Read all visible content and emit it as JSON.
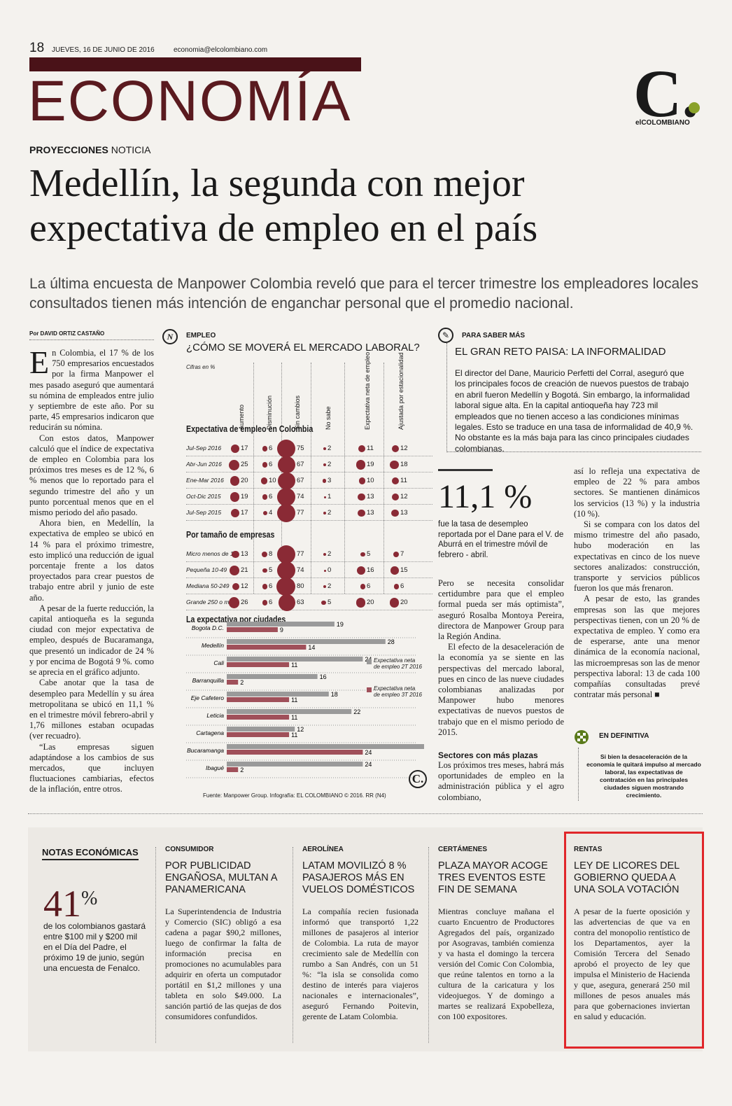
{
  "header": {
    "page_number": "18",
    "date": "JUEVES, 16 DE JUNIO DE 2016",
    "email": "economia@elcolombiano.com",
    "section": "ECONOMÍA",
    "logo_letter": "C.",
    "logo_name": "elCOLOMBIANO"
  },
  "article": {
    "kicker_bold": "PROYECCIONES",
    "kicker_light": " NOTICIA",
    "headline": "Medellín, la segunda con mejor expectativa de empleo en el país",
    "deck": "La última encuesta de Manpower Colombia reveló que para el tercer trimestre los empleadores locales consultados tienen más intención de enganchar personal que el promedio nacional.",
    "byline": "Por DAVID ORTIZ CASTAÑO",
    "dropcap": "E",
    "p1": "n Colombia, el 17 % de los 750 empresarios encuestados por la firma Manpower el mes pasado aseguró que aumentará su nómina de empleados entre julio y septiembre de este año. Por su parte, 45 empresarios indicaron que reducirán su nómina.",
    "p2": "Con estos datos, Manpower calculó que el índice de expectativa de empleo en Colombia para los próximos tres meses es de 12 %, 6 % menos que lo reportado para el segundo trimestre del año y un punto porcentual menos que en el mismo periodo del año pasado.",
    "p3": "Ahora bien, en Medellín, la expectativa de empleo se ubicó en 14 % para el próximo trimestre, esto implicó una reducción de igual porcentaje frente a los datos proyectados para crear puestos de trabajo entre abril y junio de este año.",
    "p4": "A pesar de la fuerte reducción, la capital antioqueña es la segunda ciudad con mejor expectativa de empleo, después de Bucaramanga, que presentó un indicador de 24 % y por encima de Bogotá 9 %. como se aprecia en el gráfico adjunto.",
    "p5": "Cabe anotar que la tasa de desempleo para Medellín y su área metropolitana se ubicó en 11,1 % en el trimestre móvil febrero-abril y 1,76 millones estaban ocupadas (ver recuadro).",
    "p6": "“Las empresas siguen adaptándose a los cambios de sus mercados, que incluyen fluctuaciones cambiarias, efectos de la inflación, entre otros.",
    "mid_p1": "Pero se necesita consolidar certidumbre para que el empleo formal pueda ser más optimista”, aseguró Rosalba Montoya Pereira, directora de Manpower Group para la Región Andina.",
    "mid_p2": "El efecto de la desaceleración de la economía ya se siente en las perspectivas del mercado laboral, pues en cinco de las nueve ciudades colombianas analizadas por Manpower hubo menores expectativas de nuevos puestos de trabajo que en el mismo periodo de 2015.",
    "subhead": "Sectores con más plazas",
    "mid_p3": "Los próximos tres meses, habrá más oportunidades de empleo en la administración pública y el agro colombiano,",
    "right_p1": "así lo refleja una expectativa de empleo de 22 % para ambos sectores. Se mantienen dinámicos los servicios (13 %) y la industria (10 %).",
    "right_p2": "Si se compara con los datos del mismo trimestre del año pasado, hubo moderación en las expectativas en cinco de los nueve sectores analizados: construcción, transporte y servicios públicos fueron los que más frenaron.",
    "right_p3": "A pesar de esto, las grandes empresas son las que mejores perspectivas tienen, con un 20 % de expectativa de empleo. Y como era de esperarse, ante una menor dinámica de la economía nacional, las microempresas son las de menor perspectiva laboral: 13 de cada 100 compañías consultadas prevé contratar más personal ■"
  },
  "sidebar": {
    "kicker": "PARA SABER MÁS",
    "title": "EL GRAN RETO PAISA: LA INFORMALIDAD",
    "text": "El director del Dane, Mauricio Perfetti del Corral, aseguró que los principales focos de creación de nuevos puestos de trabajo en abril fueron Medellín y Bogotá. Sin embargo, la informalidad laboral sigue alta. En la capital antioqueña hay 723 mil empleados que no tienen acceso a las condiciones mínimas legales. Esto se traduce en una tasa de informalidad de 40,9 %. No obstante es la más baja para las cinco principales ciudades colombianas.",
    "big_number": "11,1 %",
    "big_text": "fue la tasa de desempleo reportada por el Dane para el V. de Aburrá en el trimestre móvil de febrero - abril.",
    "ed_kicker": "EN DEFINITIVA",
    "ed_text": "Si bien la desaceleración de la economía le quitará impulso al mercado laboral, las expectativas de contratación en las principales ciudades siguen mostrando crecimiento."
  },
  "chart_data": {
    "kicker": "EMPLEO",
    "title": "¿CÓMO SE MOVERÁ EL MERCADO LABORAL?",
    "units": "Cifras en %",
    "columns": [
      "Aumento",
      "Disminución",
      "Sin cambios",
      "No sabe",
      "Expectativa neta de empleo",
      "Ajustada por estacionalidad"
    ],
    "type": "table",
    "groups": [
      {
        "title": "Expectativa de empleo en Colombia",
        "rows": [
          {
            "label": "Jul-Sep 2016",
            "values": [
              17,
              6,
              75,
              2,
              11,
              12
            ]
          },
          {
            "label": "Abr-Jun 2016",
            "values": [
              25,
              6,
              67,
              2,
              19,
              18
            ]
          },
          {
            "label": "Ene-Mar 2016",
            "values": [
              20,
              10,
              67,
              3,
              10,
              11
            ]
          },
          {
            "label": "Oct-Dic 2015",
            "values": [
              19,
              6,
              74,
              1,
              13,
              12
            ]
          },
          {
            "label": "Jul-Sep 2015",
            "values": [
              17,
              4,
              77,
              2,
              13,
              13
            ]
          }
        ]
      },
      {
        "title": "Por tamaño de empresas",
        "rows": [
          {
            "label": "Micro menos de 10",
            "values": [
              13,
              8,
              77,
              2,
              5,
              7
            ]
          },
          {
            "label": "Pequeña 10-49",
            "values": [
              21,
              5,
              74,
              0,
              16,
              15
            ]
          },
          {
            "label": "Mediana 50-249",
            "values": [
              12,
              6,
              80,
              2,
              6,
              6
            ]
          },
          {
            "label": "Grande 250 o más",
            "values": [
              26,
              6,
              63,
              5,
              20,
              20
            ]
          }
        ]
      }
    ],
    "cities": {
      "title": "La expectativa por ciudades",
      "type": "bar",
      "categories": [
        "Bogota D.C.",
        "Medellín",
        "Cali",
        "Barranquilla",
        "Eje Cafetero",
        "Leticia",
        "Cartagena",
        "Bucaramanga",
        "Ibagué"
      ],
      "series": [
        {
          "name": "Expectativa neta de empleo 2T 2016",
          "values": [
            19,
            28,
            24,
            16,
            18,
            22,
            12,
            36,
            24
          ],
          "color": "#9a9a9a"
        },
        {
          "name": "Expectativa neta de empleo 3T 2016",
          "values": [
            9,
            14,
            11,
            2,
            11,
            11,
            11,
            24,
            2
          ],
          "color": "#a0505a"
        }
      ]
    },
    "source": "Fuente: Manpower Group. Infografía: EL COLOMBIANO © 2016. RR (N4)",
    "logo": "C."
  },
  "notes": {
    "title": "NOTAS ECONÓMICAS",
    "pct_value": "41",
    "pct_sign": "%",
    "pct_text": "de los colombianos gastará entre $100 mil y $200 mil en el Día del Padre, el próximo 19 de junio, según una encuesta de Fenalco.",
    "items": [
      {
        "kicker": "CONSUMIDOR",
        "headline": "POR PUBLICIDAD ENGAÑOSA, MULTAN A PANAMERICANA",
        "body": "La Superintendencia de Industria y Comercio (SIC) obligó a esa cadena a pagar $90,2 millones, luego de confirmar la falta de información precisa en promociones no acumulables para adquirir en oferta un computador portátil en $1,2 millones y una tableta en solo $49.000. La sanción partió de las quejas de dos consumidores confundidos."
      },
      {
        "kicker": "AEROLÍNEA",
        "headline": "LATAM MOVILIZÓ 8 % PASAJEROS MÁS EN VUELOS DOMÉSTICOS",
        "body": "La compañía recien fusionada informó que transportó 1,22 millones de pasajeros al interior de Colombia. La ruta de mayor crecimiento sale de Medellín con rumbo a San Andrés, con un 51 %: “la isla se consolida como destino de interés para viajeros nacionales e internacionales”, aseguró Fernando Poitevin, gerente de Latam Colombia."
      },
      {
        "kicker": "CERTÁMENES",
        "headline": "PLAZA MAYOR ACOGE TRES EVENTOS ESTE FIN DE SEMANA",
        "body": "Mientras concluye mañana el cuarto Encuentro de Productores Agregados del país, organizado por Asogravas, también comienza y va hasta el domingo la tercera versión del Comic Con Colombia, que reúne talentos en torno a la cultura de la caricatura y los videojuegos. Y de domingo a martes se realizará Expobelleza, con 100 expositores."
      },
      {
        "kicker": "RENTAS",
        "headline": "LEY DE LICORES DEL GOBIERNO QUEDA A UNA SOLA VOTACIÓN",
        "body": "A pesar de la fuerte oposición y las advertencias de que va en contra del monopolio rentístico de los Departamentos, ayer la Comisión Tercera del Senado aprobó el proyecto de ley que impulsa el Ministerio de Hacienda y que, asegura, generará 250 mil millones de pesos anuales más para que gobernaciones inviertan en salud y educación."
      }
    ]
  }
}
